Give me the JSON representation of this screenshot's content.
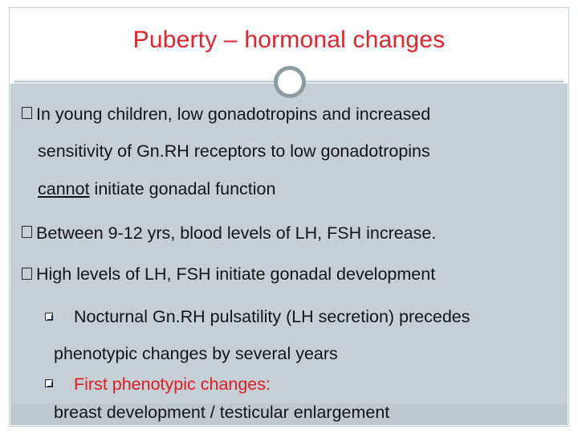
{
  "slide": {
    "title": "Puberty – hormonal changes",
    "bullets": [
      {
        "lines": [
          "In young children, low gonadotropins and increased",
          "sensitivity of Gn.RH receptors to low gonadotropins"
        ],
        "line3_underlined": "cannot",
        "line3_rest": " initiate gonadal function"
      },
      {
        "text": "Between 9-12 yrs, blood levels of LH, FSH increase."
      },
      {
        "text": "High levels of LH, FSH initiate gonadal development"
      }
    ],
    "sub_bullets": [
      {
        "line1": "Nocturnal Gn.RH pulsatility (LH secretion) precedes",
        "line2": "phenotypic changes by several years"
      },
      {
        "line1": "First phenotypic changes:",
        "line2": "breast development / testicular enlargement",
        "line1_color": "#e01b24"
      }
    ]
  },
  "colors": {
    "title": "#e8222c",
    "panel": "#c6cfd5",
    "text": "#151515"
  },
  "icons": {
    "bullet": "checkbox-bullet-icon",
    "sub_bullet": "q-checkbox-bullet-icon",
    "divider_ornament": "ring-icon"
  }
}
